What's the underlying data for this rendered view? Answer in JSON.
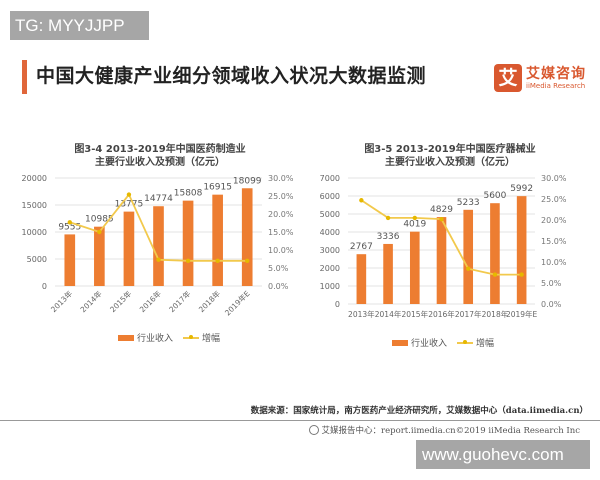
{
  "watermarks": {
    "top": "TG: MYYJJPP",
    "bottom": "www.guohevc.com"
  },
  "header": {
    "title": "中国大健康产业细分领域收入状况大数据监测",
    "logo": {
      "glyph": "艾",
      "name_cn": "艾媒咨询",
      "name_en": "iiMedia Research"
    },
    "accent_color": "#e0663a"
  },
  "charts": [
    {
      "title_line1": "图3-4 2013-2019年中国医药制造业",
      "title_line2": "主要行业收入及预测（亿元）",
      "legend": {
        "bar": "行业收入",
        "line": "增幅"
      }
    },
    {
      "title_line1": "图3-5 2013-2019年中国医疗器械业",
      "title_line2": "主要行业收入及预测（亿元）",
      "legend": {
        "bar": "行业收入",
        "line": "增幅"
      }
    }
  ],
  "chart_data": [
    {
      "type": "bar+line",
      "title": "图3-4 2013-2019年中国医药制造业主要行业收入及预测（亿元）",
      "categories": [
        "2013年",
        "2014年",
        "2015年",
        "2016年",
        "2017年",
        "2018年",
        "2019年E"
      ],
      "series": [
        {
          "name": "行业收入",
          "type": "bar",
          "axis": "left",
          "values": [
            9555,
            10985,
            13775,
            14774,
            15808,
            16915,
            18099
          ]
        },
        {
          "name": "增幅",
          "type": "line",
          "axis": "right",
          "values": [
            17.7,
            15.0,
            25.4,
            7.3,
            7.0,
            7.0,
            7.0
          ]
        }
      ],
      "yleft": {
        "ticks": [
          "0",
          "5000",
          "10000",
          "15000",
          "20000"
        ],
        "range": [
          0,
          20000
        ]
      },
      "yright": {
        "ticks": [
          "0.0%",
          "5.0%",
          "10.0%",
          "15.0%",
          "20.0%",
          "25.0%",
          "30.0%"
        ],
        "range": [
          0,
          30
        ]
      },
      "colors": {
        "bar": "#ed7d31",
        "line": "#f2c94c"
      },
      "grid": true,
      "legend_position": "bottom",
      "xtick_rotation": -45
    },
    {
      "type": "bar+line",
      "title": "图3-5 2013-2019年中国医疗器械业主要行业收入及预测（亿元）",
      "categories": [
        "2013年",
        "2014年",
        "2015年",
        "2016年",
        "2017年",
        "2018年",
        "2019年E"
      ],
      "series": [
        {
          "name": "行业收入",
          "type": "bar",
          "axis": "left",
          "values": [
            2767,
            3336,
            4019,
            4829,
            5233,
            5600,
            5992
          ]
        },
        {
          "name": "增幅",
          "type": "line",
          "axis": "right",
          "values": [
            24.7,
            20.5,
            20.5,
            20.2,
            8.4,
            7.0,
            7.0
          ]
        }
      ],
      "yleft": {
        "ticks": [
          "0",
          "1000",
          "2000",
          "3000",
          "4000",
          "5000",
          "6000",
          "7000"
        ],
        "range": [
          0,
          7000
        ]
      },
      "yright": {
        "ticks": [
          "0.0%",
          "5.0%",
          "10.0%",
          "15.0%",
          "20.0%",
          "25.0%",
          "30.0%"
        ],
        "range": [
          0,
          30
        ]
      },
      "colors": {
        "bar": "#ed7d31",
        "line": "#f2c94c"
      },
      "grid": true,
      "legend_position": "bottom",
      "xtick_rotation": 0
    }
  ],
  "footer": {
    "source": "数据来源：国家统计局，南方医药产业经济研究所，艾媒数据中心（data.iimedia.cn）",
    "copyright": "艾媒报告中心：report.iimedia.cn©2019 iiMedia Research Inc"
  }
}
